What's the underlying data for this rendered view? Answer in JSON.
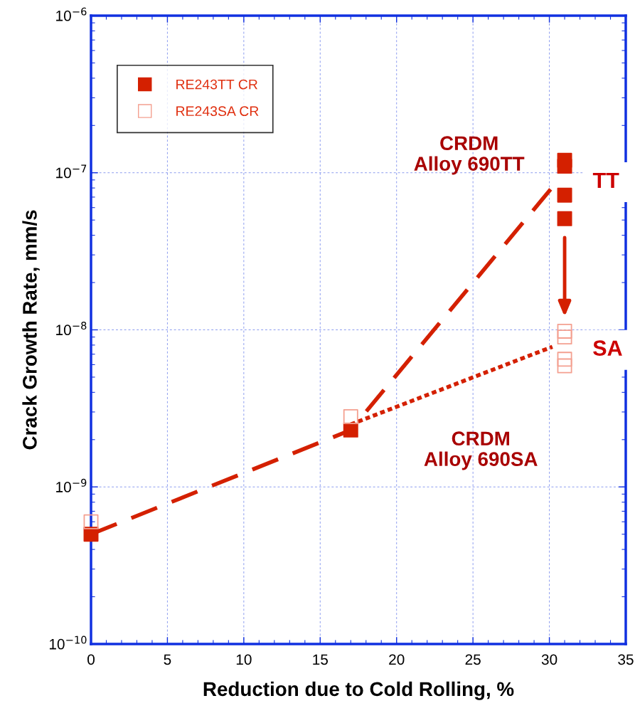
{
  "chart_data": {
    "type": "scatter",
    "xlabel": "Reduction due to Cold Rolling, %",
    "ylabel": "Crack Growth Rate, mm/s",
    "log": "y",
    "xlim": [
      0,
      35
    ],
    "xticks": [
      0,
      5,
      10,
      15,
      20,
      25,
      30,
      35
    ],
    "ylim": [
      1e-10,
      1e-06
    ],
    "yticks": [
      {
        "value": 1e-10,
        "label": "10$^{−10}$"
      },
      {
        "value": 1e-09,
        "label": "10$^{−9}$"
      },
      {
        "value": 1e-08,
        "label": "10$^{−8}$"
      },
      {
        "value": 1e-07,
        "label": "10$^{−7}$"
      },
      {
        "value": 1e-06,
        "label": "10$^{−6}$"
      }
    ],
    "grid": true,
    "legend": "top left",
    "series": [
      {
        "name": "RE243TT CR",
        "marker": "square",
        "color": "#d42000",
        "x": [
          0,
          17,
          31,
          31,
          31,
          31
        ],
        "values": [
          5e-10,
          2.3e-09,
          1.2e-07,
          1.1e-07,
          7.2e-08,
          5.1e-08
        ]
      },
      {
        "name": "RE243SA CR",
        "marker": "square",
        "color": "#f4a090",
        "x": [
          0,
          17,
          31,
          31,
          31,
          31
        ],
        "values": [
          6e-10,
          2.8e-09,
          9.8e-09,
          9e-09,
          6.5e-09,
          5.9e-09
        ]
      },
      {
        "type": "line",
        "line_style": "dashed",
        "color": "#d42000",
        "x": [
          0,
          17,
          30.2
        ],
        "values": [
          5e-10,
          2.3e-09,
          8.1e-08
        ]
      },
      {
        "type": "line",
        "line_style": "dotted",
        "color": "#d42000",
        "x": [
          17,
          30.2
        ],
        "values": [
          2.5e-09,
          7.8e-09
        ]
      }
    ],
    "annotations": [
      "CRDM\nAlloy 690TT",
      "TT",
      "SA",
      "CRDM\nAlloy 690SA"
    ]
  }
}
